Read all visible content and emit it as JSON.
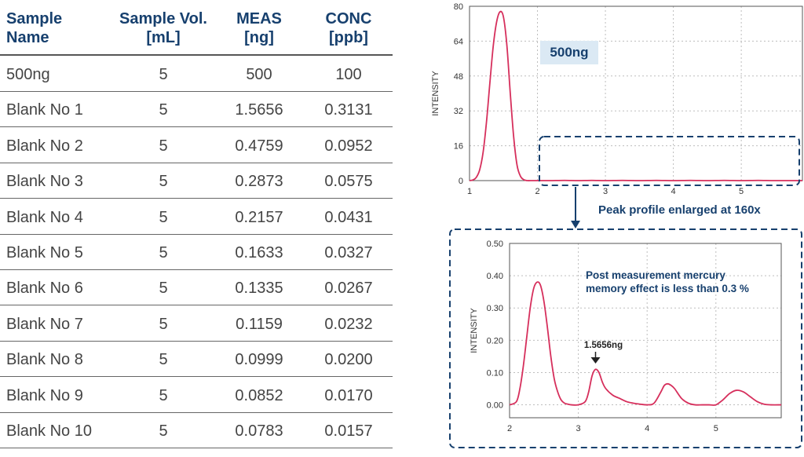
{
  "table": {
    "headers": [
      "Sample\nName",
      "Sample Vol.\n[mL]",
      "MEAS\n[ng]",
      "CONC\n[ppb]"
    ],
    "rows": [
      [
        "500ng",
        "5",
        "500",
        "100"
      ],
      [
        "Blank No 1",
        "5",
        "1.5656",
        "0.3131"
      ],
      [
        "Blank No 2",
        "5",
        "0.4759",
        "0.0952"
      ],
      [
        "Blank No 3",
        "5",
        "0.2873",
        "0.0575"
      ],
      [
        "Blank No 4",
        "5",
        "0.2157",
        "0.0431"
      ],
      [
        "Blank No 5",
        "5",
        "0.1633",
        "0.0327"
      ],
      [
        "Blank No 6",
        "5",
        "0.1335",
        "0.0267"
      ],
      [
        "Blank No 7",
        "5",
        "0.1159",
        "0.0232"
      ],
      [
        "Blank No 8",
        "5",
        "0.0999",
        "0.0200"
      ],
      [
        "Blank No 9",
        "5",
        "0.0852",
        "0.0170"
      ],
      [
        "Blank No 10",
        "5",
        "0.0783",
        "0.0157"
      ]
    ]
  },
  "chart_data": [
    {
      "type": "line",
      "title": "",
      "xlabel": "",
      "ylabel": "INTENSITY",
      "xlim": [
        1,
        5.9
      ],
      "ylim": [
        0,
        80
      ],
      "xticks": [
        1,
        2,
        3,
        4,
        5
      ],
      "yticks": [
        0,
        16,
        32,
        48,
        64,
        80
      ],
      "grid": true,
      "annotation": "500ng",
      "series": [
        {
          "name": "500ng",
          "x": [
            1.0,
            1.05,
            1.1,
            1.15,
            1.2,
            1.25,
            1.3,
            1.35,
            1.4,
            1.45,
            1.5,
            1.55,
            1.6,
            1.65,
            1.7,
            1.75,
            1.8,
            1.85,
            1.9,
            2.0,
            2.1,
            2.2,
            2.4,
            2.6,
            2.8,
            3.0,
            3.25,
            3.5,
            3.75,
            4.0,
            4.25,
            4.5,
            4.75,
            5.0,
            5.25,
            5.5,
            5.9
          ],
          "values": [
            0.0,
            0.3,
            1.5,
            5.0,
            13.0,
            27.0,
            45.0,
            62.0,
            73.0,
            77.5,
            75.0,
            62.0,
            40.0,
            20.0,
            7.0,
            2.0,
            0.4,
            0.0,
            0.0,
            0.0,
            0.0,
            0.0,
            0.1,
            0.0,
            0.1,
            0.0,
            0.1,
            0.0,
            0.1,
            0.0,
            0.1,
            0.0,
            0.1,
            0.0,
            0.1,
            0.0,
            0.0
          ]
        }
      ]
    },
    {
      "type": "line",
      "title": "",
      "xlabel": "",
      "ylabel": "INTENSITY",
      "xlim": [
        2,
        5.95
      ],
      "ylim": [
        -0.04,
        0.5
      ],
      "xticks": [
        2,
        3,
        4,
        5
      ],
      "yticks": [
        0.0,
        0.1,
        0.2,
        0.3,
        0.4,
        0.5
      ],
      "ytick_labels": [
        "0.00",
        "0.10",
        "0.20",
        "0.30",
        "0.40",
        "0.50"
      ],
      "grid": true,
      "note": "Post measurement mercury\nmemory effect is less than 0.3 %",
      "peak_label": "1.5656ng",
      "peak_label_x": 3.25,
      "series": [
        {
          "name": "enlarged",
          "x": [
            2.0,
            2.1,
            2.15,
            2.2,
            2.25,
            2.3,
            2.35,
            2.4,
            2.45,
            2.5,
            2.55,
            2.6,
            2.65,
            2.7,
            2.75,
            2.8,
            2.85,
            2.9,
            3.0,
            3.1,
            3.15,
            3.2,
            3.25,
            3.3,
            3.35,
            3.4,
            3.5,
            3.6,
            3.7,
            3.8,
            3.9,
            4.0,
            4.1,
            4.2,
            4.25,
            4.3,
            4.35,
            4.4,
            4.5,
            4.6,
            4.7,
            4.8,
            4.9,
            5.0,
            5.1,
            5.2,
            5.3,
            5.4,
            5.5,
            5.6,
            5.7,
            5.8,
            5.95
          ],
          "values": [
            0.0,
            0.01,
            0.05,
            0.12,
            0.21,
            0.3,
            0.36,
            0.38,
            0.37,
            0.32,
            0.24,
            0.15,
            0.08,
            0.04,
            0.015,
            0.005,
            0.002,
            0.0,
            0.0,
            0.01,
            0.04,
            0.09,
            0.11,
            0.1,
            0.07,
            0.05,
            0.03,
            0.02,
            0.01,
            0.005,
            0.002,
            0.0,
            0.005,
            0.04,
            0.06,
            0.065,
            0.06,
            0.05,
            0.02,
            0.005,
            0.0,
            0.0,
            0.0,
            0.0,
            0.015,
            0.035,
            0.045,
            0.04,
            0.025,
            0.01,
            0.002,
            0.0,
            0.0
          ]
        }
      ]
    }
  ],
  "callout": {
    "enlarge_label": "Peak profile enlarged at 160x"
  },
  "colors": {
    "line": "#d62f5c",
    "accent": "#17406e",
    "grid": "#bdbdbd",
    "label_bg": "#dbe9f4"
  }
}
